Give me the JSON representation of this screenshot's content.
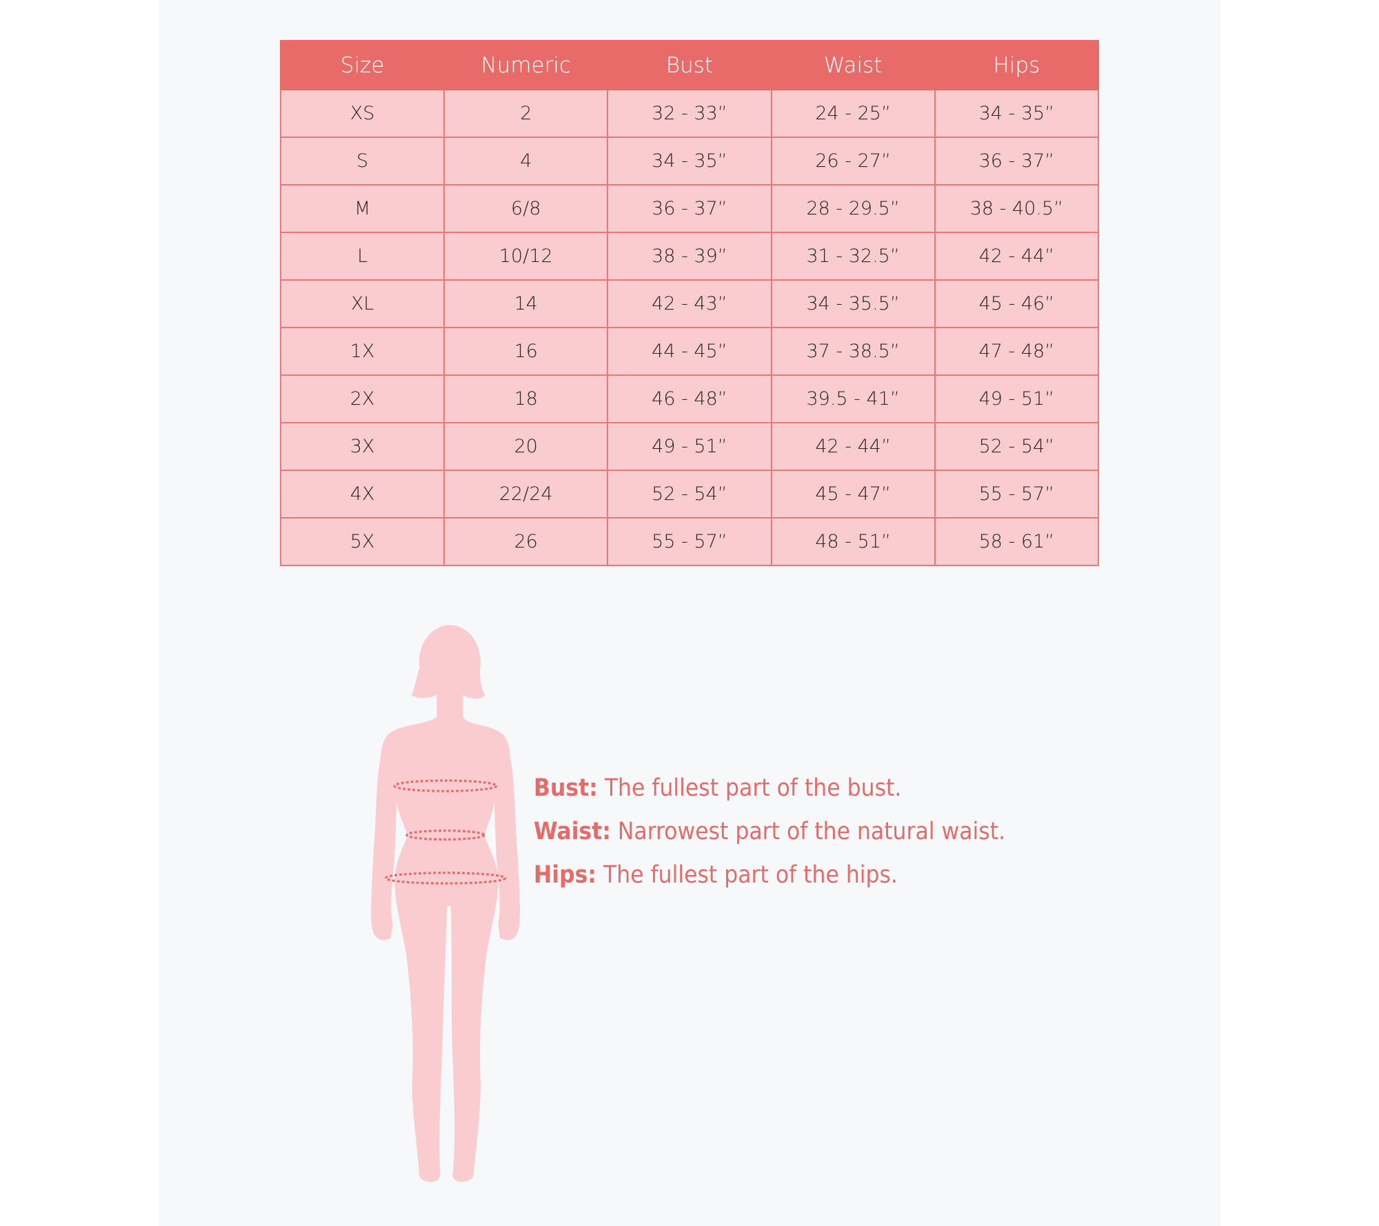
{
  "colors": {
    "header": "#e96b69",
    "cell": "#f9cdd0",
    "border": "#ec7775",
    "label": "#e36c6a",
    "figure": "#f9cdd0"
  },
  "table": {
    "headers": [
      "Size",
      "Numeric",
      "Bust",
      "Waist",
      "Hips"
    ],
    "rows": [
      [
        "XS",
        "2",
        "32  -  33”",
        "24 - 25”",
        "34 - 35”"
      ],
      [
        "S",
        "4",
        "34 - 35”",
        "26 - 27”",
        "36 - 37”"
      ],
      [
        "M",
        "6/8",
        "36 - 37”",
        "28 - 29.5”",
        "38 - 40.5”"
      ],
      [
        "L",
        "10/12",
        "38 - 39”",
        "31 - 32.5”",
        "42 - 44”"
      ],
      [
        "XL",
        "14",
        "42 - 43”",
        "34 - 35.5”",
        "45 - 46”"
      ],
      [
        "1X",
        "16",
        "44 - 45”",
        "37 - 38.5”",
        "47 - 48”"
      ],
      [
        "2X",
        "18",
        "46 - 48”",
        "39.5 - 41”",
        "49 - 51”"
      ],
      [
        "3X",
        "20",
        "49 - 51”",
        "42 - 44”",
        "52 - 54”"
      ],
      [
        "4X",
        "22/24",
        "52 - 54”",
        "45 - 47”",
        "55 - 57”"
      ],
      [
        "5X",
        "26",
        "55 - 57”",
        "48 - 51”",
        "58 - 61”"
      ]
    ]
  },
  "figure": {
    "icon": "woman-silhouette-icon"
  },
  "notes": [
    {
      "label": "Bust:",
      "text": " The fullest part of the bust."
    },
    {
      "label": "Waist:",
      "text": " Narrowest part of the natural waist."
    },
    {
      "label": "Hips:",
      "text": " The fullest part of the hips."
    }
  ]
}
